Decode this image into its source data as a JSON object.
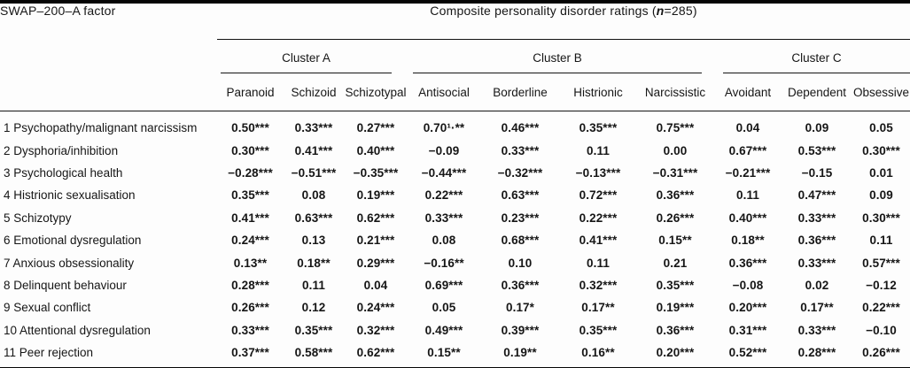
{
  "table": {
    "row_header_title": "SWAP–200–A factor",
    "composite_header": {
      "prefix": "Composite personality disorder ratings (",
      "n_italic": "n",
      "suffix": "=285)"
    },
    "clusters": [
      {
        "label": "Cluster A",
        "columns": [
          "Paranoid",
          "Schizoid",
          "Schizotypal"
        ]
      },
      {
        "label": "Cluster B",
        "columns": [
          "Antisocial",
          "Borderline",
          "Histrionic",
          "Narcissistic"
        ]
      },
      {
        "label": "Cluster C",
        "columns": [
          "Avoidant",
          "Dependent",
          "Obsessive"
        ]
      }
    ],
    "rows": [
      {
        "label": "1 Psychopathy/malignant narcissism",
        "values": [
          "0.50***",
          "0.33***",
          "0.27***",
          "0.70¹·**",
          "0.46***",
          "0.35***",
          "0.75***",
          "0.04",
          "0.09",
          "0.05"
        ]
      },
      {
        "label": "2 Dysphoria/inhibition",
        "values": [
          "0.30***",
          "0.41***",
          "0.40***",
          "−0.09",
          "0.33***",
          "0.11",
          "0.00",
          "0.67***",
          "0.53***",
          "0.30***"
        ]
      },
      {
        "label": "3 Psychological health",
        "values": [
          "−0.28***",
          "−0.51***",
          "−0.35***",
          "−0.44***",
          "−0.32***",
          "−0.13***",
          "−0.31***",
          "−0.21***",
          "−0.15",
          "0.01"
        ]
      },
      {
        "label": "4 Histrionic sexualisation",
        "values": [
          "0.35***",
          "0.08",
          "0.19***",
          "0.22***",
          "0.63***",
          "0.72***",
          "0.36***",
          "0.11",
          "0.47***",
          "0.09"
        ]
      },
      {
        "label": "5 Schizotypy",
        "values": [
          "0.41***",
          "0.63***",
          "0.62***",
          "0.33***",
          "0.23***",
          "0.22***",
          "0.26***",
          "0.40***",
          "0.33***",
          "0.30***"
        ]
      },
      {
        "label": "6 Emotional dysregulation",
        "values": [
          "0.24***",
          "0.13",
          "0.21***",
          "0.08",
          "0.68***",
          "0.41***",
          "0.15**",
          "0.18**",
          "0.36***",
          "0.11"
        ]
      },
      {
        "label": "7 Anxious obsessionality",
        "values": [
          "0.13**",
          "0.18**",
          "0.29***",
          "−0.16**",
          "0.10",
          "0.11",
          "0.21",
          "0.36***",
          "0.33***",
          "0.57***"
        ]
      },
      {
        "label": "8 Delinquent behaviour",
        "values": [
          "0.28***",
          "0.11",
          "0.04",
          "0.69***",
          "0.36***",
          "0.32***",
          "0.35***",
          "−0.08",
          "0.02",
          "−0.12"
        ]
      },
      {
        "label": "9 Sexual conflict",
        "values": [
          "0.26***",
          "0.12",
          "0.24***",
          "0.05",
          "0.17*",
          "0.17**",
          "0.19***",
          "0.20***",
          "0.17**",
          "0.22***"
        ]
      },
      {
        "label": "10 Attentional dysregulation",
        "values": [
          "0.33***",
          "0.35***",
          "0.32***",
          "0.49***",
          "0.39***",
          "0.35***",
          "0.36***",
          "0.31***",
          "0.33***",
          "−0.10"
        ]
      },
      {
        "label": "11 Peer rejection",
        "values": [
          "0.37***",
          "0.58***",
          "0.62***",
          "0.15**",
          "0.19**",
          "0.16**",
          "0.20***",
          "0.52***",
          "0.28***",
          "0.26***"
        ]
      }
    ]
  }
}
